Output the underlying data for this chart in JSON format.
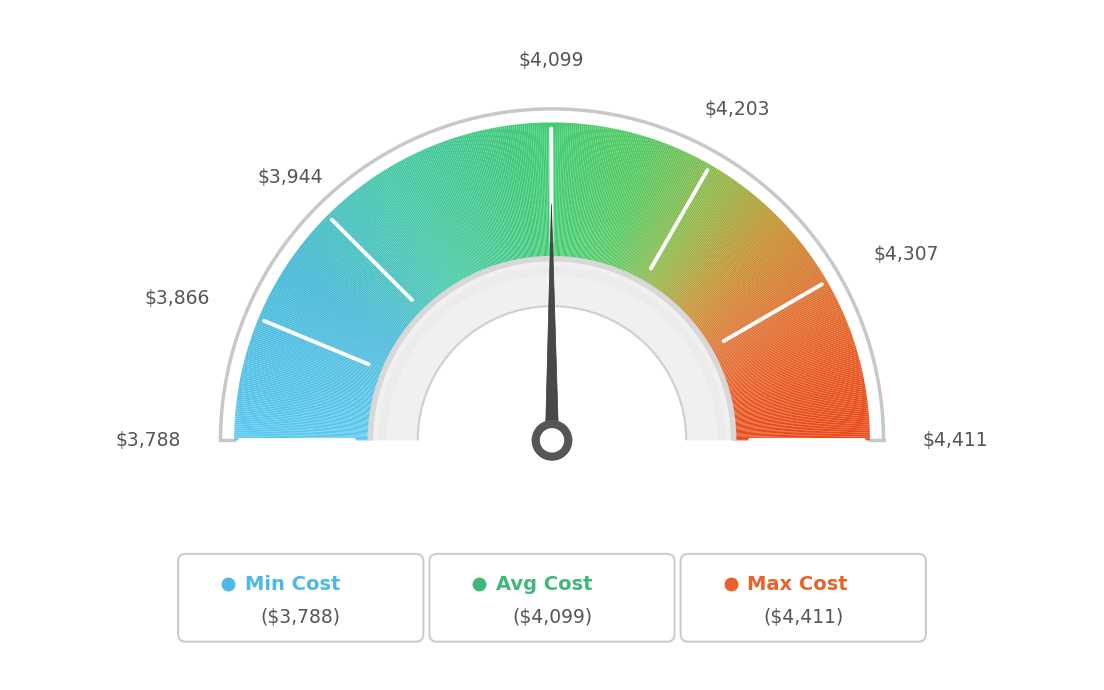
{
  "min_val": 3788,
  "avg_val": 4099,
  "max_val": 4411,
  "tick_labels": [
    "$3,788",
    "$3,866",
    "$3,944",
    "$4,099",
    "$4,203",
    "$4,307",
    "$4,411"
  ],
  "tick_values": [
    3788,
    3866,
    3944,
    4099,
    4203,
    4307,
    4411
  ],
  "legend_labels": [
    "Min Cost",
    "Avg Cost",
    "Max Cost"
  ],
  "legend_values": [
    "($3,788)",
    "($4,099)",
    "($4,411)"
  ],
  "legend_colors": [
    "#4db8e8",
    "#3db878",
    "#e8622a"
  ],
  "background_color": "#ffffff",
  "colors_gradient": [
    [
      0.0,
      "#5bc8f0"
    ],
    [
      0.18,
      "#45b8d8"
    ],
    [
      0.32,
      "#45c8a8"
    ],
    [
      0.46,
      "#3dc87a"
    ],
    [
      0.5,
      "#40cc70"
    ],
    [
      0.6,
      "#55c860"
    ],
    [
      0.68,
      "#90b848"
    ],
    [
      0.76,
      "#c89030"
    ],
    [
      0.84,
      "#e07030"
    ],
    [
      0.92,
      "#e85820"
    ],
    [
      1.0,
      "#e84818"
    ]
  ]
}
